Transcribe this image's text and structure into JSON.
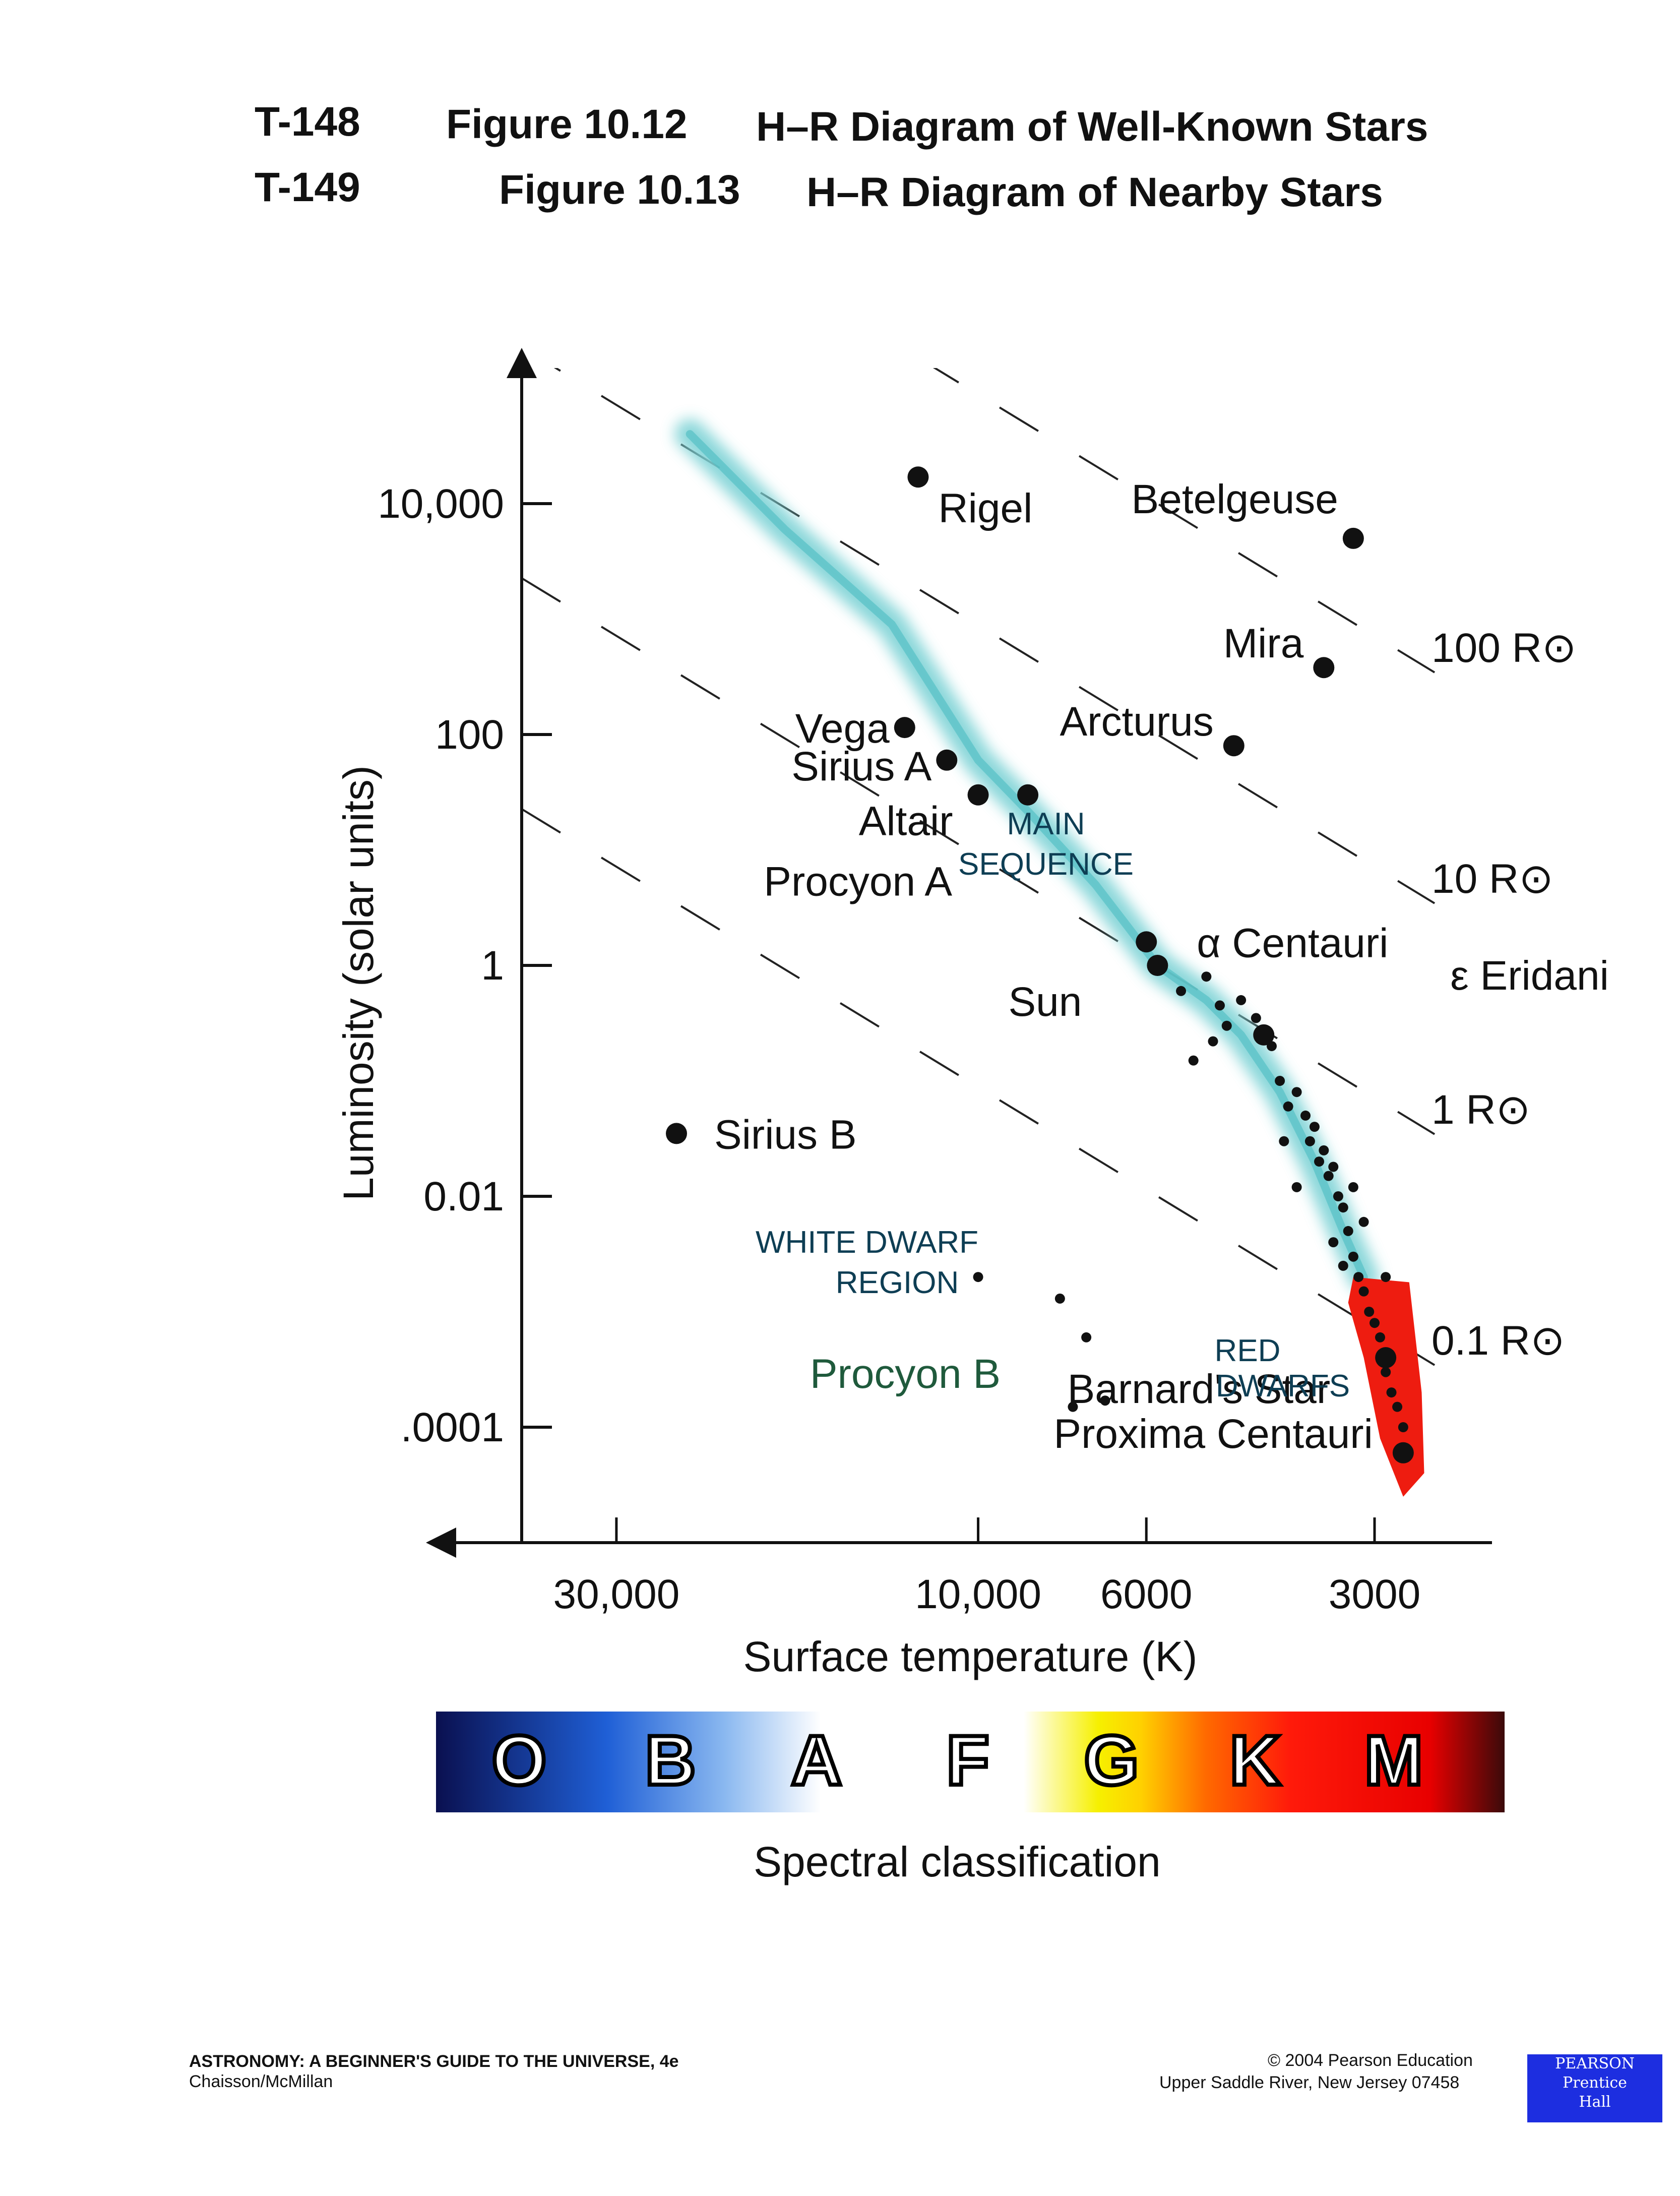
{
  "header": {
    "line1_code": "T-148",
    "line1_fig": "Figure 10.12",
    "line1_title": "H–R Diagram of Well-Known Stars",
    "line2_code": "T-149",
    "line2_fig": "Figure 10.13",
    "line2_title": "H–R Diagram of Nearby Stars"
  },
  "chart_data": {
    "type": "scatter",
    "xlabel": "Surface temperature (K)",
    "ylabel": "Luminosity (solar units)",
    "x_scale": "log, reversed",
    "y_scale": "log",
    "xlim": [
      40000,
      2100
    ],
    "ylim": [
      1e-05,
      100000
    ],
    "x_ticks": [
      {
        "value": 30000,
        "label": "30,000"
      },
      {
        "value": 10000,
        "label": "10,000"
      },
      {
        "value": 6000,
        "label": "6000"
      },
      {
        "value": 3000,
        "label": "3000"
      }
    ],
    "y_ticks": [
      {
        "value": 10000,
        "label": "10,000"
      },
      {
        "value": 100,
        "label": "100"
      },
      {
        "value": 1,
        "label": "1"
      },
      {
        "value": 0.01,
        "label": "0.01"
      },
      {
        "value": 0.0001,
        "label": ".0001"
      }
    ],
    "named_stars": [
      {
        "name": "Rigel",
        "temp": 12000,
        "lum": 17000
      },
      {
        "name": "Betelgeuse",
        "temp": 3200,
        "lum": 5000
      },
      {
        "name": "Mira",
        "temp": 3500,
        "lum": 380
      },
      {
        "name": "Vega",
        "temp": 12500,
        "lum": 115
      },
      {
        "name": "Sirius A",
        "temp": 11000,
        "lum": 60
      },
      {
        "name": "Arcturus",
        "temp": 4600,
        "lum": 80
      },
      {
        "name": "Altair",
        "temp": 10000,
        "lum": 30
      },
      {
        "name": "Procyon A",
        "temp": 8600,
        "lum": 30
      },
      {
        "name": "α Centauri",
        "temp": 6000,
        "lum": 1.6
      },
      {
        "name": "Sun",
        "temp": 5800,
        "lum": 1
      },
      {
        "name": "Sirius B",
        "temp": 25000,
        "lum": 0.035
      },
      {
        "name": "Procyon B",
        "temp": 7200,
        "lum": 0.0006
      },
      {
        "name": "ε Eridani",
        "temp": 4200,
        "lum": 0.25
      },
      {
        "name": "Barnard's Star",
        "temp": 2900,
        "lum": 0.0004
      },
      {
        "name": "Proxima Centauri",
        "temp": 2750,
        "lum": 6e-05
      }
    ],
    "nearby_stars": [
      {
        "temp": 5400,
        "lum": 0.6
      },
      {
        "temp": 5000,
        "lum": 0.8
      },
      {
        "temp": 4800,
        "lum": 0.45
      },
      {
        "temp": 4700,
        "lum": 0.3
      },
      {
        "temp": 4500,
        "lum": 0.5
      },
      {
        "temp": 4300,
        "lum": 0.35
      },
      {
        "temp": 4100,
        "lum": 0.2
      },
      {
        "temp": 5200,
        "lum": 0.15
      },
      {
        "temp": 4900,
        "lum": 0.22
      },
      {
        "temp": 4000,
        "lum": 0.1
      },
      {
        "temp": 3900,
        "lum": 0.06
      },
      {
        "temp": 3800,
        "lum": 0.08
      },
      {
        "temp": 3700,
        "lum": 0.05
      },
      {
        "temp": 3650,
        "lum": 0.03
      },
      {
        "temp": 3600,
        "lum": 0.04
      },
      {
        "temp": 3550,
        "lum": 0.02
      },
      {
        "temp": 3500,
        "lum": 0.025
      },
      {
        "temp": 3450,
        "lum": 0.015
      },
      {
        "temp": 3400,
        "lum": 0.018
      },
      {
        "temp": 3350,
        "lum": 0.01
      },
      {
        "temp": 3300,
        "lum": 0.008
      },
      {
        "temp": 3250,
        "lum": 0.005
      },
      {
        "temp": 3200,
        "lum": 0.003
      },
      {
        "temp": 3150,
        "lum": 0.002
      },
      {
        "temp": 3100,
        "lum": 0.0015
      },
      {
        "temp": 3050,
        "lum": 0.001
      },
      {
        "temp": 3000,
        "lum": 0.0008
      },
      {
        "temp": 2950,
        "lum": 0.0006
      },
      {
        "temp": 2900,
        "lum": 0.0003
      },
      {
        "temp": 2850,
        "lum": 0.0002
      },
      {
        "temp": 2800,
        "lum": 0.00015
      },
      {
        "temp": 2750,
        "lum": 0.0001
      },
      {
        "temp": 3800,
        "lum": 0.012
      },
      {
        "temp": 3950,
        "lum": 0.03
      },
      {
        "temp": 3200,
        "lum": 0.012
      },
      {
        "temp": 3100,
        "lum": 0.006
      },
      {
        "temp": 2900,
        "lum": 0.002
      },
      {
        "temp": 3400,
        "lum": 0.004
      },
      {
        "temp": 3300,
        "lum": 0.0025
      },
      {
        "temp": 10000,
        "lum": 0.002
      },
      {
        "temp": 7800,
        "lum": 0.0013
      },
      {
        "temp": 6800,
        "lum": 0.00017
      },
      {
        "temp": 7500,
        "lum": 0.00015
      }
    ],
    "radius_lines": [
      {
        "label": "100 R⊙"
      },
      {
        "label": "10 R⊙"
      },
      {
        "label": "1 R⊙"
      },
      {
        "label": "0.1 R⊙"
      }
    ],
    "annotations": [
      "MAIN",
      "SEQUENCE",
      "WHITE DWARF",
      "REGION",
      "RED",
      "DWARFS"
    ],
    "spectral_classes": [
      "O",
      "B",
      "A",
      "F",
      "G",
      "K",
      "M"
    ],
    "spectral_label": "Spectral classification"
  },
  "footer": {
    "book_title": "ASTRONOMY: A BEGINNER'S GUIDE TO THE UNIVERSE, 4e",
    "authors": "Chaisson/McMillan",
    "copyright": "© 2004 Pearson Education",
    "address": "Upper Saddle River, New Jersey 07458",
    "logo_line1": "PEARSON",
    "logo_line2": "Prentice",
    "logo_line3": "Hall"
  }
}
